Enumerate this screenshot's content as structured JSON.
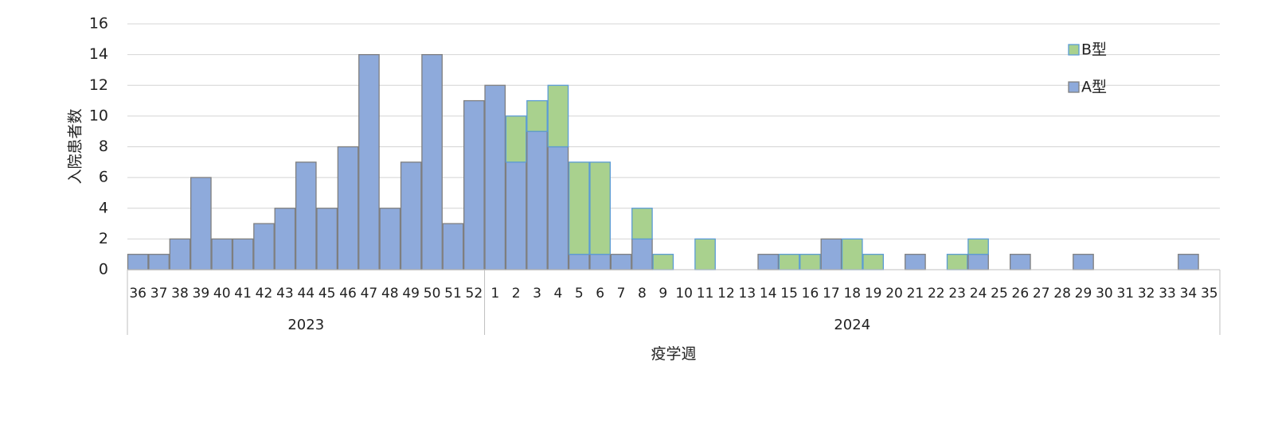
{
  "chart_data": {
    "type": "bar",
    "stacked": true,
    "xlabel": "疫学週",
    "ylabel": "入院患者数",
    "ylim": [
      0,
      16
    ],
    "yticks": [
      0,
      2,
      4,
      6,
      8,
      10,
      12,
      14,
      16
    ],
    "grid": true,
    "legend_position": "right",
    "categories": [
      "36",
      "37",
      "38",
      "39",
      "40",
      "41",
      "42",
      "43",
      "44",
      "45",
      "46",
      "47",
      "48",
      "49",
      "50",
      "51",
      "52",
      "1",
      "2",
      "3",
      "4",
      "5",
      "6",
      "7",
      "8",
      "9",
      "10",
      "11",
      "12",
      "13",
      "14",
      "15",
      "16",
      "17",
      "18",
      "19",
      "20",
      "21",
      "22",
      "23",
      "24",
      "25",
      "26",
      "27",
      "28",
      "29",
      "30",
      "31",
      "32",
      "33",
      "34",
      "35"
    ],
    "groups": [
      {
        "label": "2023",
        "start": 0,
        "count": 17
      },
      {
        "label": "2024",
        "start": 17,
        "count": 35
      }
    ],
    "series": [
      {
        "name": "A型",
        "color": "#8eaadb",
        "edge": "#7f7f7f",
        "values": [
          1,
          1,
          2,
          6,
          2,
          2,
          3,
          4,
          7,
          4,
          8,
          14,
          4,
          7,
          14,
          3,
          11,
          12,
          7,
          9,
          8,
          1,
          1,
          1,
          2,
          0,
          0,
          0,
          0,
          0,
          1,
          0,
          0,
          2,
          0,
          0,
          0,
          1,
          0,
          0,
          1,
          0,
          1,
          0,
          0,
          1,
          0,
          0,
          0,
          0,
          1,
          0
        ]
      },
      {
        "name": "B型",
        "color": "#a9d18e",
        "edge": "#5b9bd5",
        "values": [
          0,
          0,
          0,
          0,
          0,
          0,
          0,
          0,
          0,
          0,
          0,
          0,
          0,
          0,
          0,
          0,
          0,
          0,
          3,
          2,
          4,
          6,
          6,
          0,
          2,
          1,
          0,
          2,
          0,
          0,
          0,
          1,
          1,
          0,
          2,
          1,
          0,
          0,
          0,
          1,
          1,
          0,
          0,
          0,
          0,
          0,
          0,
          0,
          0,
          0,
          0,
          0
        ]
      }
    ]
  }
}
